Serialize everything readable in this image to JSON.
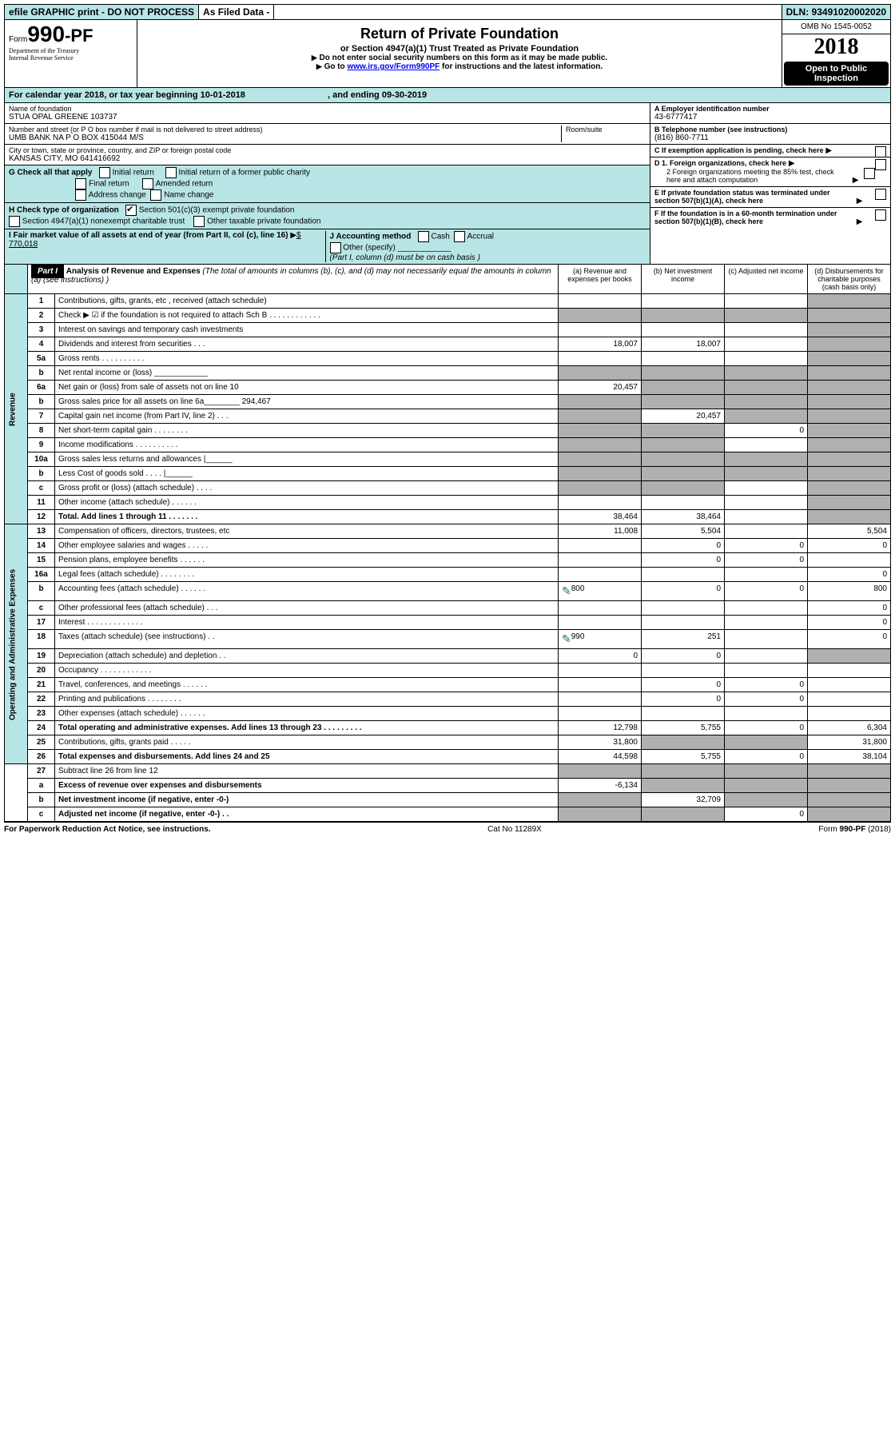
{
  "topbar": {
    "efile": "efile GRAPHIC print - DO NOT PROCESS",
    "asfiled": "As Filed Data -",
    "dln": "DLN: 93491020002020"
  },
  "header": {
    "form_prefix": "Form",
    "form_num": "990",
    "form_suffix": "-PF",
    "dept": "Department of the Treasury",
    "irs": "Internal Revenue Service",
    "title": "Return of Private Foundation",
    "subtitle": "or Section 4947(a)(1) Trust Treated as Private Foundation",
    "note1": "Do not enter social security numbers on this form as it may be made public.",
    "note2_pre": "Go to ",
    "note2_link": "www.irs.gov/Form990PF",
    "note2_post": " for instructions and the latest information.",
    "omb": "OMB No 1545-0052",
    "year": "2018",
    "open": "Open to Public Inspection"
  },
  "calyear": {
    "pre": "For calendar year 2018, or tax year beginning ",
    "begin": "10-01-2018",
    "mid": ", and ending ",
    "end": "09-30-2019"
  },
  "info": {
    "name_label": "Name of foundation",
    "name": "STUA OPAL GREENE 103737",
    "addr_label": "Number and street (or P O  box number if mail is not delivered to street address)",
    "addr": "UMB BANK NA P O BOX 415044 M/S",
    "room_label": "Room/suite",
    "city_label": "City or town, state or province, country, and ZIP or foreign postal code",
    "city": "KANSAS CITY, MO  641416692",
    "ein_label": "A Employer identification number",
    "ein": "43-6777417",
    "phone_label": "B Telephone number (see instructions)",
    "phone": "(816) 860-7711",
    "c_label": "C If exemption application is pending, check here",
    "g_label": "G Check all that apply",
    "g_opts": [
      "Initial return",
      "Initial return of a former public charity",
      "Final return",
      "Amended return",
      "Address change",
      "Name change"
    ],
    "h_label": "H Check type of organization",
    "h_opt1": "Section 501(c)(3) exempt private foundation",
    "h_opt2": "Section 4947(a)(1) nonexempt charitable trust",
    "h_opt3": "Other taxable private foundation",
    "d1": "D 1. Foreign organizations, check here",
    "d2": "2 Foreign organizations meeting the 85% test, check here and attach computation",
    "e": "E  If private foundation status was terminated under section 507(b)(1)(A), check here",
    "i_label": "I Fair market value of all assets at end of year (from Part II, col  (c), line 16)",
    "i_val": "$  770,018",
    "j_label": "J Accounting method",
    "j_cash": "Cash",
    "j_accrual": "Accrual",
    "j_other": "Other (specify)",
    "j_note": "(Part I, column (d) must be on cash basis )",
    "f": "F  If the foundation is in a 60-month termination under section 507(b)(1)(B), check here"
  },
  "part1": {
    "label": "Part I",
    "title": "Analysis of Revenue and Expenses",
    "desc": " (The total of amounts in columns (b), (c), and (d) may not necessarily equal the amounts in column (a) (see instructions) )",
    "col_a": "(a) Revenue and expenses per books",
    "col_b": "(b) Net investment income",
    "col_c": "(c) Adjusted net income",
    "col_d": "(d) Disbursements for charitable purposes (cash basis only)"
  },
  "sections": {
    "revenue": "Revenue",
    "expenses": "Operating and Administrative Expenses"
  },
  "rows": [
    {
      "n": "1",
      "d": "Contributions, gifts, grants, etc , received (attach schedule)",
      "a": "",
      "b": "",
      "c": "",
      "dd": "",
      "sec": "rev",
      "c_shade": false,
      "d_shade": true
    },
    {
      "n": "2",
      "d": "Check ▶ ☑ if the foundation is not required to attach Sch B     .  .  .  .  .  .  .  .  .  .  .  .",
      "a": "",
      "b": "",
      "c": "",
      "dd": "",
      "sec": "rev",
      "a_shade": true,
      "b_shade": true,
      "c_shade": true,
      "d_shade": true
    },
    {
      "n": "3",
      "d": "Interest on savings and temporary cash investments",
      "a": "",
      "b": "",
      "c": "",
      "dd": "",
      "sec": "rev",
      "d_shade": true
    },
    {
      "n": "4",
      "d": "Dividends and interest from securities   .  .  .",
      "a": "18,007",
      "b": "18,007",
      "c": "",
      "dd": "",
      "sec": "rev",
      "d_shade": true
    },
    {
      "n": "5a",
      "d": "Gross rents    .  .  .  .  .  .  .  .  .  .",
      "a": "",
      "b": "",
      "c": "",
      "dd": "",
      "sec": "rev",
      "d_shade": true
    },
    {
      "n": "b",
      "d": "Net rental income or (loss)  ____________",
      "a": "",
      "b": "",
      "c": "",
      "dd": "",
      "sec": "rev",
      "a_shade": true,
      "b_shade": true,
      "c_shade": true,
      "d_shade": true
    },
    {
      "n": "6a",
      "d": "Net gain or (loss) from sale of assets not on line 10",
      "a": "20,457",
      "b": "",
      "c": "",
      "dd": "",
      "sec": "rev",
      "b_shade": true,
      "c_shade": true,
      "d_shade": true
    },
    {
      "n": "b",
      "d": "Gross sales price for all assets on line 6a________ 294,467",
      "a": "",
      "b": "",
      "c": "",
      "dd": "",
      "sec": "rev",
      "a_shade": true,
      "b_shade": true,
      "c_shade": true,
      "d_shade": true
    },
    {
      "n": "7",
      "d": "Capital gain net income (from Part IV, line 2)  .  .  .",
      "a": "",
      "b": "20,457",
      "c": "",
      "dd": "",
      "sec": "rev",
      "a_shade": true,
      "c_shade": true,
      "d_shade": true
    },
    {
      "n": "8",
      "d": "Net short-term capital gain  .  .  .  .  .  .  .  .",
      "a": "",
      "b": "",
      "c": "0",
      "dd": "",
      "sec": "rev",
      "a_shade": true,
      "b_shade": true,
      "d_shade": true
    },
    {
      "n": "9",
      "d": "Income modifications .  .  .  .  .  .  .  .  .  .",
      "a": "",
      "b": "",
      "c": "",
      "dd": "",
      "sec": "rev",
      "a_shade": true,
      "b_shade": true,
      "d_shade": true
    },
    {
      "n": "10a",
      "d": "Gross sales less returns and allowances |______",
      "a": "",
      "b": "",
      "c": "",
      "dd": "",
      "sec": "rev",
      "a_shade": true,
      "b_shade": true,
      "c_shade": true,
      "d_shade": true
    },
    {
      "n": "b",
      "d": "Less  Cost of goods sold   .  .  .  .  |______",
      "a": "",
      "b": "",
      "c": "",
      "dd": "",
      "sec": "rev",
      "a_shade": true,
      "b_shade": true,
      "c_shade": true,
      "d_shade": true
    },
    {
      "n": "c",
      "d": "Gross profit or (loss) (attach schedule)   .  .  .  .",
      "a": "",
      "b": "",
      "c": "",
      "dd": "",
      "sec": "rev",
      "a_shade": true,
      "b_shade": true,
      "d_shade": true
    },
    {
      "n": "11",
      "d": "Other income (attach schedule)   .  .  .  .  .  .",
      "a": "",
      "b": "",
      "c": "",
      "dd": "",
      "sec": "rev",
      "d_shade": true
    },
    {
      "n": "12",
      "d": "Total. Add lines 1 through 11   .  .  .  .  .  .  .",
      "a": "38,464",
      "b": "38,464",
      "c": "",
      "dd": "",
      "sec": "rev",
      "bold": true,
      "d_shade": true
    },
    {
      "n": "13",
      "d": "Compensation of officers, directors, trustees, etc",
      "a": "11,008",
      "b": "5,504",
      "c": "",
      "dd": "5,504",
      "sec": "exp"
    },
    {
      "n": "14",
      "d": "Other employee salaries and wages   .  .  .  .  .",
      "a": "",
      "b": "0",
      "c": "0",
      "dd": "0",
      "sec": "exp"
    },
    {
      "n": "15",
      "d": "Pension plans, employee benefits  .  .  .  .  .  .",
      "a": "",
      "b": "0",
      "c": "0",
      "dd": "",
      "sec": "exp"
    },
    {
      "n": "16a",
      "d": "Legal fees (attach schedule) .  .  .  .  .  .  .  .",
      "a": "",
      "b": "",
      "c": "",
      "dd": "0",
      "sec": "exp"
    },
    {
      "n": "b",
      "d": "Accounting fees (attach schedule) .  .  .  .  .  .",
      "a": "800",
      "b": "0",
      "c": "0",
      "dd": "800",
      "sec": "exp",
      "attach": true
    },
    {
      "n": "c",
      "d": "Other professional fees (attach schedule)  .  .  .",
      "a": "",
      "b": "",
      "c": "",
      "dd": "0",
      "sec": "exp"
    },
    {
      "n": "17",
      "d": "Interest  .  .  .  .  .  .  .  .  .  .  .  .  .",
      "a": "",
      "b": "",
      "c": "",
      "dd": "0",
      "sec": "exp"
    },
    {
      "n": "18",
      "d": "Taxes (attach schedule) (see instructions)   .  .",
      "a": "990",
      "b": "251",
      "c": "",
      "dd": "0",
      "sec": "exp",
      "attach": true
    },
    {
      "n": "19",
      "d": "Depreciation (attach schedule) and depletion   .  .",
      "a": "0",
      "b": "0",
      "c": "",
      "dd": "",
      "sec": "exp",
      "d_shade": true
    },
    {
      "n": "20",
      "d": "Occupancy   .  .  .  .  .  .  .  .  .  .  .  .",
      "a": "",
      "b": "",
      "c": "",
      "dd": "",
      "sec": "exp"
    },
    {
      "n": "21",
      "d": "Travel, conferences, and meetings .  .  .  .  .  .",
      "a": "",
      "b": "0",
      "c": "0",
      "dd": "",
      "sec": "exp"
    },
    {
      "n": "22",
      "d": "Printing and publications .  .  .  .  .  .  .  .",
      "a": "",
      "b": "0",
      "c": "0",
      "dd": "",
      "sec": "exp"
    },
    {
      "n": "23",
      "d": "Other expenses (attach schedule)  .  .  .  .  .  .",
      "a": "",
      "b": "",
      "c": "",
      "dd": "",
      "sec": "exp"
    },
    {
      "n": "24",
      "d": "Total operating and administrative expenses. Add lines 13 through 23  .  .  .  .  .  .  .  .  .",
      "a": "12,798",
      "b": "5,755",
      "c": "0",
      "dd": "6,304",
      "sec": "exp",
      "bold": true
    },
    {
      "n": "25",
      "d": "Contributions, gifts, grants paid   .  .  .  .  .",
      "a": "31,800",
      "b": "",
      "c": "",
      "dd": "31,800",
      "sec": "exp",
      "b_shade": true,
      "c_shade": true
    },
    {
      "n": "26",
      "d": "Total expenses and disbursements. Add lines 24 and 25",
      "a": "44,598",
      "b": "5,755",
      "c": "0",
      "dd": "38,104",
      "sec": "exp",
      "bold": true
    },
    {
      "n": "27",
      "d": "Subtract line 26 from line 12",
      "a": "",
      "b": "",
      "c": "",
      "dd": "",
      "sec": "bot",
      "a_shade": true,
      "b_shade": true,
      "c_shade": true,
      "d_shade": true
    },
    {
      "n": "a",
      "d": "Excess of revenue over expenses and disbursements",
      "a": "-6,134",
      "b": "",
      "c": "",
      "dd": "",
      "sec": "bot",
      "bold": true,
      "b_shade": true,
      "c_shade": true,
      "d_shade": true
    },
    {
      "n": "b",
      "d": "Net investment income (if negative, enter -0-)",
      "a": "",
      "b": "32,709",
      "c": "",
      "dd": "",
      "sec": "bot",
      "bold": true,
      "a_shade": true,
      "c_shade": true,
      "d_shade": true
    },
    {
      "n": "c",
      "d": "Adjusted net income (if negative, enter -0-)  .  .",
      "a": "",
      "b": "",
      "c": "0",
      "dd": "",
      "sec": "bot",
      "bold": true,
      "a_shade": true,
      "b_shade": true,
      "d_shade": true
    }
  ],
  "footer": {
    "left": "For Paperwork Reduction Act Notice, see instructions.",
    "mid": "Cat  No  11289X",
    "right": "Form 990-PF (2018)"
  }
}
